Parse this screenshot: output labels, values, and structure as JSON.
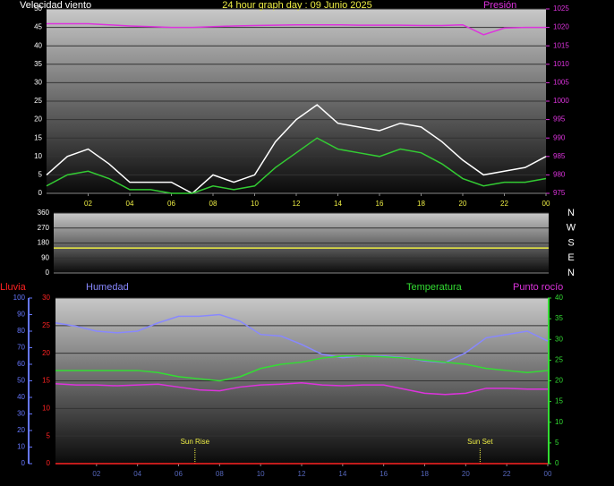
{
  "chart_data": [
    {
      "type": "line",
      "title": "24 hour graph day : 09 Junio 2025",
      "ylabel": "Velocidad viento",
      "y2label": "Presión",
      "x": [
        0,
        1,
        2,
        3,
        4,
        5,
        6,
        7,
        8,
        9,
        10,
        11,
        12,
        13,
        14,
        15,
        16,
        17,
        18,
        19,
        20,
        21,
        22,
        23,
        24
      ],
      "xlim": [
        0,
        24
      ],
      "xticks": [
        {
          "value": 2,
          "label": "02"
        },
        {
          "value": 4,
          "label": "04"
        },
        {
          "value": 6,
          "label": "06"
        },
        {
          "value": 8,
          "label": "08"
        },
        10,
        12,
        14,
        16,
        18,
        20,
        22,
        {
          "value": 24,
          "label": "00"
        }
      ],
      "ylim": [
        0,
        50
      ],
      "yticks": [
        0,
        5,
        10,
        15,
        20,
        25,
        30,
        35,
        40,
        45,
        50
      ],
      "y2lim": [
        975,
        1025
      ],
      "y2ticks": [
        975,
        980,
        985,
        990,
        995,
        1000,
        1005,
        1010,
        1015,
        1020,
        1025
      ],
      "grid": true,
      "series": [
        {
          "color": "#ffffff",
          "values": [
            5,
            10,
            12,
            8,
            3,
            3,
            3,
            0,
            5,
            3,
            5,
            14,
            20,
            24,
            19,
            18,
            17,
            19,
            18,
            14,
            9,
            5,
            6,
            7,
            10
          ]
        },
        {
          "color": "#33cc33",
          "values": [
            2,
            5,
            6,
            4,
            1,
            1,
            0,
            0,
            2,
            1,
            2,
            7,
            11,
            15,
            12,
            11,
            10,
            12,
            11,
            8,
            4,
            2,
            3,
            3,
            4
          ]
        },
        {
          "color": "#dd33dd",
          "axis": "y2",
          "values": [
            1021,
            1021,
            1021,
            1020.7,
            1020.4,
            1020.2,
            1020,
            1020,
            1020.2,
            1020.4,
            1020.5,
            1020.6,
            1020.7,
            1020.7,
            1020.7,
            1020.6,
            1020.6,
            1020.6,
            1020.5,
            1020.5,
            1020.7,
            1018,
            1019.8,
            1020,
            1020
          ]
        }
      ]
    },
    {
      "type": "line",
      "x": [
        0,
        24
      ],
      "xlim": [
        0,
        24
      ],
      "ylim": [
        0,
        360
      ],
      "yticks": [
        0,
        90,
        180,
        270,
        360
      ],
      "direction_labels": [
        "N",
        "E",
        "S",
        "W",
        "N"
      ],
      "grid": true,
      "series": [
        {
          "color": "#eeee44",
          "values": [
            150,
            150
          ]
        }
      ]
    },
    {
      "type": "line",
      "x": [
        0,
        1,
        2,
        3,
        4,
        5,
        6,
        7,
        8,
        9,
        10,
        11,
        12,
        13,
        14,
        15,
        16,
        17,
        18,
        19,
        20,
        21,
        22,
        23,
        24
      ],
      "xlim": [
        0,
        24
      ],
      "xticks": [
        {
          "value": 2,
          "label": "02"
        },
        {
          "value": 4,
          "label": "04"
        },
        {
          "value": 6,
          "label": "06"
        },
        {
          "value": 8,
          "label": "08"
        },
        10,
        12,
        14,
        16,
        18,
        20,
        22,
        {
          "value": 24,
          "label": "00"
        }
      ],
      "ylim": [
        0,
        100
      ],
      "yticks": [
        0,
        10,
        20,
        30,
        40,
        50,
        60,
        70,
        80,
        90,
        100
      ],
      "y2lim": [
        0,
        40
      ],
      "y2ticks": [
        0,
        5,
        10,
        15,
        20,
        25,
        30,
        35,
        40
      ],
      "y3lim": [
        0,
        30
      ],
      "y3ticks": [
        0,
        5,
        10,
        15,
        20,
        25,
        30
      ],
      "grid": true,
      "series": [
        {
          "name": "Lluvia",
          "color": "#ff2222",
          "axis": "y3",
          "values": [
            0,
            0,
            0,
            0,
            0,
            0,
            0,
            0,
            0,
            0,
            0,
            0,
            0,
            0,
            0,
            0,
            0,
            0,
            0,
            0,
            0,
            0,
            0,
            0,
            0
          ]
        },
        {
          "name": "Humedad",
          "color": "#8888ff",
          "values": [
            85,
            83,
            80,
            79,
            80,
            85,
            89,
            89,
            90,
            86,
            78,
            77,
            72,
            66,
            64,
            65,
            65,
            64,
            62,
            61,
            67,
            76,
            78,
            80,
            74
          ]
        },
        {
          "name": "Temperatura",
          "color": "#33dd33",
          "axis": "y2",
          "values": [
            22.5,
            22.5,
            22.5,
            22.5,
            22.5,
            22,
            21,
            20.5,
            20,
            21,
            23,
            24,
            24.5,
            25.5,
            26,
            26,
            25.8,
            25.5,
            25,
            24.5,
            24,
            23,
            22.5,
            22,
            22.5
          ]
        },
        {
          "name": "Punto rocío",
          "color": "#dd33dd",
          "axis": "y2",
          "values": [
            19.3,
            19,
            19,
            18.8,
            19,
            19.2,
            18.5,
            17.8,
            17.6,
            18.5,
            19,
            19.2,
            19.5,
            19,
            18.8,
            19,
            19,
            18,
            17,
            16.7,
            17,
            18.2,
            18.2,
            18,
            18
          ]
        }
      ],
      "annotations": [
        {
          "x": 6.8,
          "label": "Sun Rise"
        },
        {
          "x": 20.7,
          "label": "Sun Set"
        }
      ]
    }
  ]
}
